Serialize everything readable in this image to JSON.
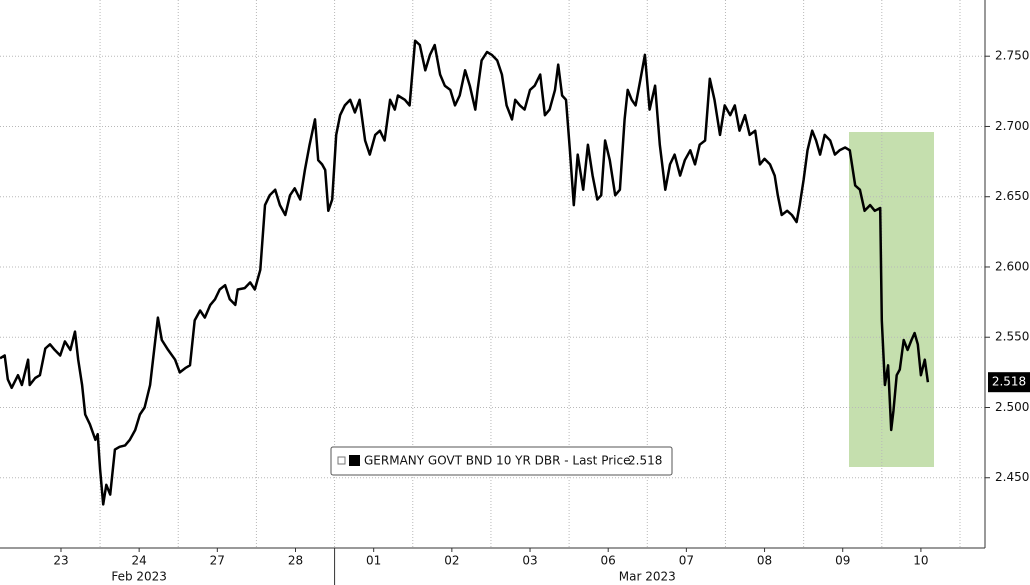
{
  "chart_data": {
    "type": "line",
    "xlim": [
      -0.28,
      12.32
    ],
    "ylim": [
      2.4,
      2.79
    ],
    "yticks": [
      {
        "value": 2.45,
        "label": "2.450"
      },
      {
        "value": 2.5,
        "label": "2.500"
      },
      {
        "value": 2.55,
        "label": "2.550"
      },
      {
        "value": 2.6,
        "label": "2.600"
      },
      {
        "value": 2.65,
        "label": "2.650"
      },
      {
        "value": 2.7,
        "label": "2.700"
      },
      {
        "value": 2.75,
        "label": "2.750"
      }
    ],
    "xticks": [
      {
        "value": 0.5,
        "label": "23"
      },
      {
        "value": 1.5,
        "label": "24"
      },
      {
        "value": 2.5,
        "label": "27"
      },
      {
        "value": 3.5,
        "label": "28"
      },
      {
        "value": 4.5,
        "label": "01"
      },
      {
        "value": 5.5,
        "label": "02"
      },
      {
        "value": 6.5,
        "label": "03"
      },
      {
        "value": 7.5,
        "label": "06"
      },
      {
        "value": 8.5,
        "label": "07"
      },
      {
        "value": 9.5,
        "label": "08"
      },
      {
        "value": 10.5,
        "label": "09"
      },
      {
        "value": 11.5,
        "label": "10"
      }
    ],
    "month_labels": [
      {
        "value": 1.5,
        "label": "Feb 2023"
      },
      {
        "value": 8.0,
        "label": "Mar 2023"
      }
    ],
    "month_divider": 4.0,
    "grid": true,
    "last_price": 2.518,
    "series": [
      {
        "name": "GERMANY GOVT BND 10 YR DBR - Last Price",
        "color": "#000000",
        "x": [
          -0.28,
          -0.22,
          -0.18,
          -0.13,
          -0.05,
          0.0,
          0.08,
          0.1,
          0.17,
          0.23,
          0.3,
          0.36,
          0.42,
          0.49,
          0.55,
          0.62,
          0.68,
          0.72,
          0.77,
          0.81,
          0.87,
          0.94,
          0.97,
          1.0,
          1.04,
          1.08,
          1.13,
          1.19,
          1.25,
          1.32,
          1.38,
          1.45,
          1.51,
          1.57,
          1.64,
          1.7,
          1.74,
          1.79,
          1.87,
          1.96,
          2.02,
          2.09,
          2.15,
          2.21,
          2.28,
          2.34,
          2.41,
          2.47,
          2.53,
          2.6,
          2.66,
          2.73,
          2.76,
          2.85,
          2.92,
          2.98,
          3.05,
          3.11,
          3.17,
          3.24,
          3.3,
          3.37,
          3.43,
          3.49,
          3.56,
          3.62,
          3.68,
          3.75,
          3.79,
          3.84,
          3.88,
          3.92,
          3.97,
          4.02,
          4.07,
          4.13,
          4.2,
          4.26,
          4.32,
          4.39,
          4.45,
          4.52,
          4.58,
          4.64,
          4.71,
          4.77,
          4.81,
          4.9,
          4.96,
          5.03,
          5.09,
          5.16,
          5.22,
          5.28,
          5.35,
          5.41,
          5.48,
          5.54,
          5.6,
          5.67,
          5.73,
          5.8,
          5.83,
          5.88,
          5.95,
          6.01,
          6.08,
          6.14,
          6.2,
          6.27,
          6.31,
          6.37,
          6.43,
          6.5,
          6.56,
          6.63,
          6.69,
          6.75,
          6.82,
          6.86,
          6.91,
          6.96,
          7.01,
          7.06,
          7.11,
          7.18,
          7.24,
          7.3,
          7.36,
          7.41,
          7.46,
          7.52,
          7.59,
          7.65,
          7.71,
          7.75,
          7.8,
          7.85,
          7.91,
          7.97,
          8.03,
          8.1,
          8.16,
          8.23,
          8.29,
          8.35,
          8.42,
          8.48,
          8.55,
          8.61,
          8.67,
          8.74,
          8.8,
          8.86,
          8.93,
          8.99,
          9.06,
          9.12,
          9.18,
          9.25,
          9.31,
          9.38,
          9.44,
          9.5,
          9.57,
          9.63,
          9.67,
          9.72,
          9.79,
          9.85,
          9.91,
          9.95,
          10.0,
          10.05,
          10.11,
          10.16,
          10.21,
          10.27,
          10.34,
          10.4,
          10.46,
          10.53,
          10.59,
          10.66,
          10.72,
          10.78,
          10.85,
          10.91,
          10.98,
          11.0,
          11.04,
          11.08,
          11.12,
          11.15,
          11.19,
          11.23,
          11.28,
          11.33,
          11.38,
          11.42,
          11.46,
          11.5,
          11.55,
          11.59
        ],
        "values": [
          2.535,
          2.537,
          2.52,
          2.514,
          2.523,
          2.516,
          2.534,
          2.516,
          2.521,
          2.523,
          2.542,
          2.545,
          2.541,
          2.537,
          2.547,
          2.541,
          2.554,
          2.534,
          2.516,
          2.495,
          2.488,
          2.477,
          2.481,
          2.456,
          2.431,
          2.445,
          2.438,
          2.47,
          2.472,
          2.473,
          2.477,
          2.484,
          2.495,
          2.5,
          2.516,
          2.545,
          2.564,
          2.548,
          2.541,
          2.534,
          2.525,
          2.528,
          2.53,
          2.562,
          2.569,
          2.564,
          2.573,
          2.577,
          2.584,
          2.587,
          2.577,
          2.573,
          2.584,
          2.585,
          2.589,
          2.584,
          2.598,
          2.644,
          2.651,
          2.655,
          2.644,
          2.637,
          2.651,
          2.656,
          2.648,
          2.669,
          2.687,
          2.705,
          2.676,
          2.673,
          2.669,
          2.64,
          2.648,
          2.694,
          2.708,
          2.715,
          2.719,
          2.71,
          2.719,
          2.69,
          2.68,
          2.694,
          2.697,
          2.69,
          2.719,
          2.712,
          2.722,
          2.719,
          2.715,
          2.761,
          2.758,
          2.74,
          2.751,
          2.758,
          2.737,
          2.729,
          2.726,
          2.715,
          2.722,
          2.74,
          2.729,
          2.712,
          2.726,
          2.747,
          2.753,
          2.751,
          2.747,
          2.737,
          2.715,
          2.705,
          2.719,
          2.715,
          2.712,
          2.726,
          2.729,
          2.737,
          2.708,
          2.712,
          2.726,
          2.744,
          2.722,
          2.719,
          2.683,
          2.644,
          2.68,
          2.655,
          2.687,
          2.665,
          2.648,
          2.651,
          2.69,
          2.676,
          2.651,
          2.655,
          2.705,
          2.726,
          2.719,
          2.715,
          2.733,
          2.751,
          2.712,
          2.729,
          2.687,
          2.655,
          2.673,
          2.68,
          2.665,
          2.676,
          2.683,
          2.673,
          2.687,
          2.69,
          2.734,
          2.719,
          2.694,
          2.715,
          2.708,
          2.715,
          2.697,
          2.708,
          2.694,
          2.697,
          2.673,
          2.677,
          2.673,
          2.665,
          2.651,
          2.637,
          2.64,
          2.637,
          2.632,
          2.644,
          2.662,
          2.683,
          2.697,
          2.69,
          2.68,
          2.694,
          2.69,
          2.68,
          2.683,
          2.685,
          2.683,
          2.658,
          2.655,
          2.64,
          2.644,
          2.64,
          2.642,
          2.562,
          2.516,
          2.53,
          2.484,
          2.498,
          2.523,
          2.527,
          2.548,
          2.541,
          2.548,
          2.553,
          2.545,
          2.523,
          2.534,
          2.518
        ]
      }
    ]
  }
}
